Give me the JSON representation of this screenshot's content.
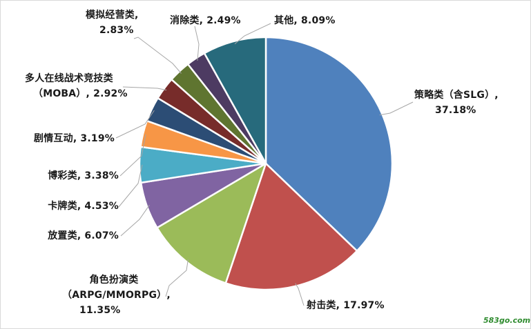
{
  "chart_data": {
    "type": "pie",
    "slices": [
      {
        "name": "策略类（含SLG）",
        "value": 37.18,
        "value_label": "37.18%",
        "color": "#4f81bd"
      },
      {
        "name": "射击类",
        "value": 17.97,
        "value_label": "17.97%",
        "color": "#c0504d"
      },
      {
        "name": "角色扮演类（ARPG/MMORPG）",
        "value": 11.35,
        "value_label": "11.35%",
        "color": "#9bbb59"
      },
      {
        "name": "放置类",
        "value": 6.07,
        "value_label": "6.07%",
        "color": "#8064a2"
      },
      {
        "name": "卡牌类",
        "value": 4.53,
        "value_label": "4.53%",
        "color": "#4bacc6"
      },
      {
        "name": "博彩类",
        "value": 3.38,
        "value_label": "3.38%",
        "color": "#f79646"
      },
      {
        "name": "剧情互动",
        "value": 3.19,
        "value_label": "3.19%",
        "color": "#2c4d75"
      },
      {
        "name": "多人在线战术竞技类（MOBA）",
        "value": 2.92,
        "value_label": "2.92%",
        "color": "#772c2a"
      },
      {
        "name": "模拟经营类",
        "value": 2.83,
        "value_label": "2.83%",
        "color": "#5f7530"
      },
      {
        "name": "消除类",
        "value": 2.49,
        "value_label": "2.49%",
        "color": "#4d3b62"
      },
      {
        "name": "其他",
        "value": 8.09,
        "value_label": "8.09%",
        "color": "#276a7c"
      }
    ],
    "legend": "none",
    "start_angle": "12 o'clock",
    "direction": "clockwise"
  },
  "labels": {
    "slg": {
      "l1": "策略类（含SLG）,",
      "l2": "37.18%"
    },
    "shooter": "射击类, 17.97%",
    "rpg": {
      "l1": "角色扮演类",
      "l2": "（ARPG/MMORPG）,",
      "l3": "11.35%"
    },
    "idle": "放置类, 6.07%",
    "card": "卡牌类, 4.53%",
    "gamble": "博彩类, 3.38%",
    "story": "剧情互动, 3.19%",
    "moba": {
      "l1": "多人在线战术竞技类",
      "l2": "（MOBA）, 2.92%"
    },
    "sim": {
      "l1": "模拟经营类,",
      "l2": "2.83%"
    },
    "match": "消除类, 2.49%",
    "other": "其他, 8.09%"
  },
  "watermark": "583go.com"
}
